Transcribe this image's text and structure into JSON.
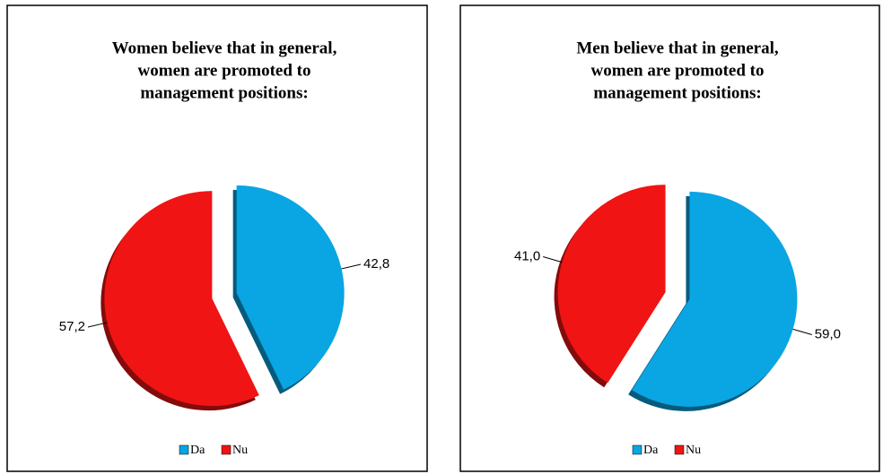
{
  "chart_data": [
    {
      "type": "pie",
      "title": [
        "Women believe that in general,",
        "women are promoted to",
        "management positions:"
      ],
      "categories": [
        "Da",
        "Nu"
      ],
      "values": [
        42.8,
        57.2
      ],
      "value_labels": [
        "42,8",
        "57,2"
      ],
      "colors": [
        "#0aa5e3",
        "#f01414"
      ],
      "legend": "bottom"
    },
    {
      "type": "pie",
      "title": [
        "Men believe that in general,",
        "women are promoted to",
        "management positions:"
      ],
      "categories": [
        "Da",
        "Nu"
      ],
      "values": [
        59.0,
        41.0
      ],
      "value_labels": [
        "59,0",
        "41,0"
      ],
      "colors": [
        "#0aa5e3",
        "#f01414"
      ],
      "legend": "bottom"
    }
  ]
}
